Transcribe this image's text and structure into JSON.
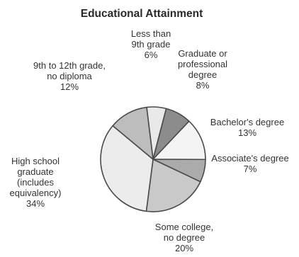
{
  "chart_data": {
    "type": "pie",
    "title": "Educational Attainment",
    "slices": [
      {
        "lines": [
          "Less than",
          "9th grade",
          "6%"
        ],
        "value": 6,
        "color": "#e9e9e9"
      },
      {
        "lines": [
          "Graduate or",
          "professional",
          "degree",
          "8%"
        ],
        "value": 8,
        "color": "#8c8c8c"
      },
      {
        "lines": [
          "Bachelor's degree",
          "13%"
        ],
        "value": 13,
        "color": "#f4f4f4"
      },
      {
        "lines": [
          "Associate's degree",
          "7%"
        ],
        "value": 7,
        "color": "#ababab"
      },
      {
        "lines": [
          "Some college,",
          "no degree",
          "20%"
        ],
        "value": 20,
        "color": "#c9c9c9"
      },
      {
        "lines": [
          "High school",
          "graduate",
          "(includes",
          "equivalency)",
          "34%"
        ],
        "value": 34,
        "color": "#ececec"
      },
      {
        "lines": [
          "9th to 12th grade,",
          "no diploma",
          "12%"
        ],
        "value": 12,
        "color": "#bdbdbd"
      }
    ]
  }
}
